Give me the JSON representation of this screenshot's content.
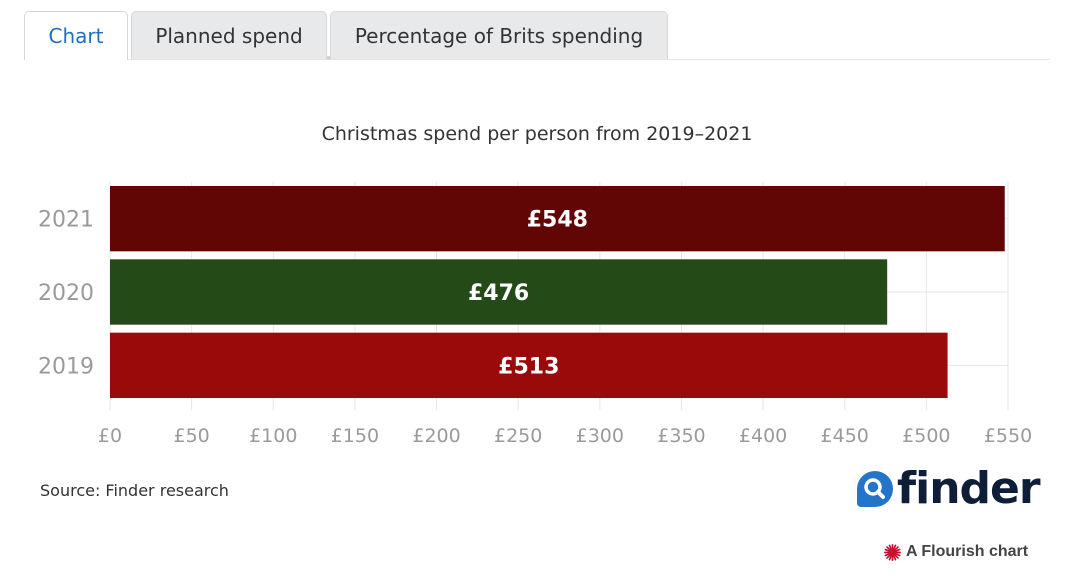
{
  "tabs": [
    {
      "label": "Chart",
      "active": true
    },
    {
      "label": "Planned spend",
      "active": false
    },
    {
      "label": "Percentage of Brits spending",
      "active": false
    }
  ],
  "chart_data": {
    "type": "bar",
    "orientation": "horizontal",
    "title": "Christmas spend per person from 2019–2021",
    "categories": [
      "2021",
      "2020",
      "2019"
    ],
    "values": [
      548,
      476,
      513
    ],
    "value_labels": [
      "£548",
      "£476",
      "£513"
    ],
    "colors": [
      "#610505",
      "#234a17",
      "#9a0a0a"
    ],
    "xlim": [
      0,
      550
    ],
    "xticks": [
      0,
      50,
      100,
      150,
      200,
      250,
      300,
      350,
      400,
      450,
      500,
      550
    ],
    "xtick_labels": [
      "£0",
      "£50",
      "£100",
      "£150",
      "£200",
      "£250",
      "£300",
      "£350",
      "£400",
      "£450",
      "£500",
      "£550"
    ],
    "grid": true,
    "xlabel": "",
    "ylabel": ""
  },
  "footer": {
    "source": "Source: Finder research",
    "logo_text": "finder",
    "flourish_label": "A Flourish chart"
  },
  "colors": {
    "accent": "#1d6fc4",
    "finder_blue": "#2474c8",
    "finder_navy": "#0e1e38",
    "flourish_red": "#c8102e"
  }
}
